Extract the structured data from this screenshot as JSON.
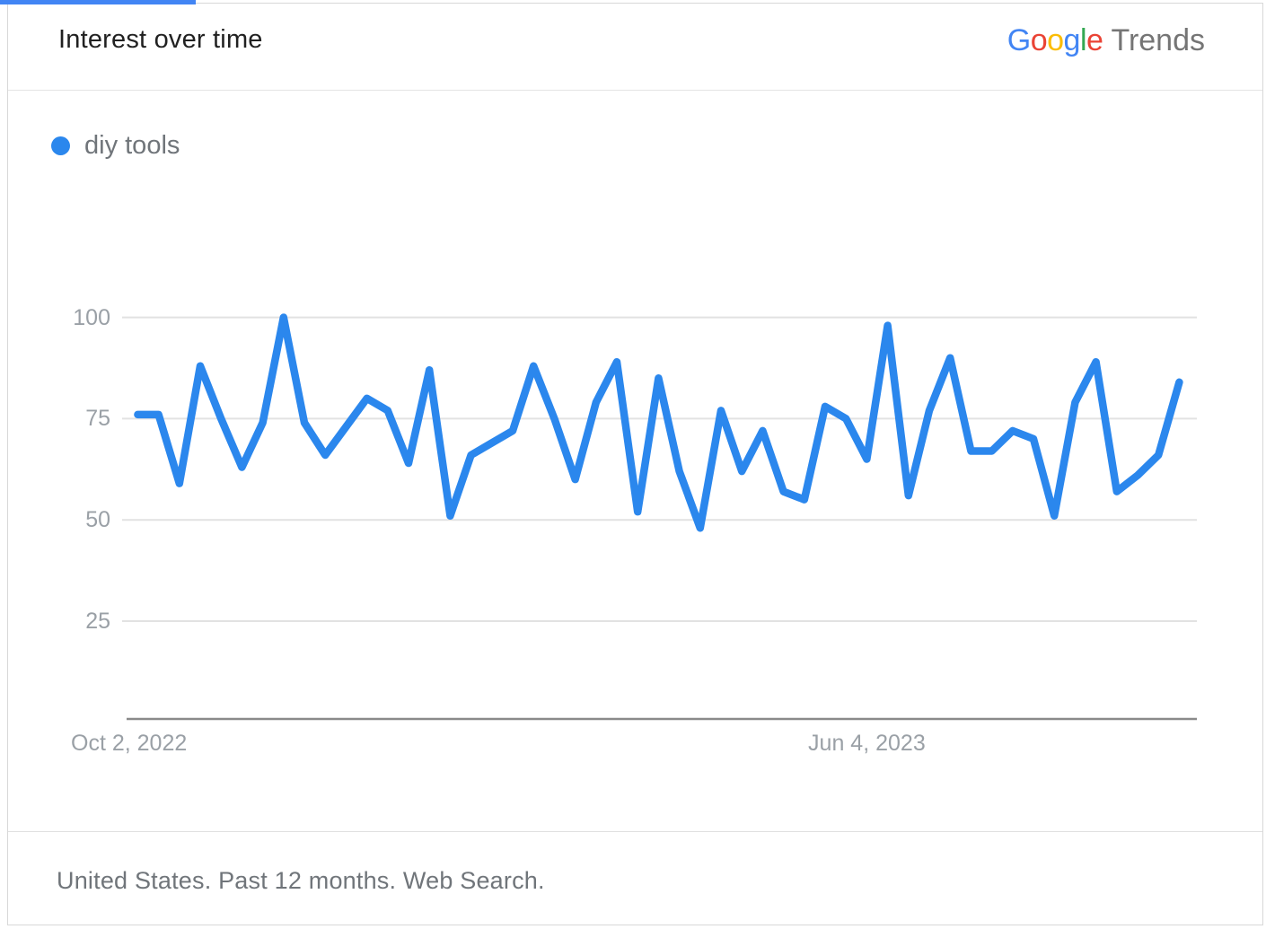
{
  "header": {
    "title": "Interest over time",
    "logo": {
      "google_letters": [
        {
          "char": "G",
          "color": "#4285F4"
        },
        {
          "char": "o",
          "color": "#EA4335"
        },
        {
          "char": "o",
          "color": "#FBBC05"
        },
        {
          "char": "g",
          "color": "#4285F4"
        },
        {
          "char": "l",
          "color": "#34A853"
        },
        {
          "char": "e",
          "color": "#EA4335"
        }
      ],
      "suffix": "Trends"
    }
  },
  "legend": {
    "term": "diy tools",
    "dot_color": "#2b87ed"
  },
  "chart_data": {
    "type": "line",
    "title": "Interest over time",
    "x_unit": "week",
    "x_tick_labels": [
      {
        "label": "Oct 2, 2022",
        "index": 0
      },
      {
        "label": "Jun 4, 2023",
        "index": 35
      }
    ],
    "y_ticks": [
      25,
      50,
      75,
      100
    ],
    "ylim": [
      0,
      100
    ],
    "grid": "horizontal",
    "line_color": "#2b87ed",
    "series": [
      {
        "name": "diy tools",
        "values": [
          76,
          76,
          59,
          88,
          75,
          63,
          74,
          100,
          74,
          66,
          73,
          80,
          77,
          64,
          87,
          51,
          66,
          69,
          72,
          88,
          75,
          60,
          79,
          89,
          52,
          85,
          62,
          48,
          77,
          62,
          72,
          57,
          55,
          78,
          75,
          65,
          98,
          56,
          77,
          90,
          67,
          67,
          72,
          70,
          51,
          79,
          89,
          57,
          61,
          66,
          84
        ]
      }
    ]
  },
  "footer": {
    "text": "United States. Past 12 months. Web Search."
  }
}
